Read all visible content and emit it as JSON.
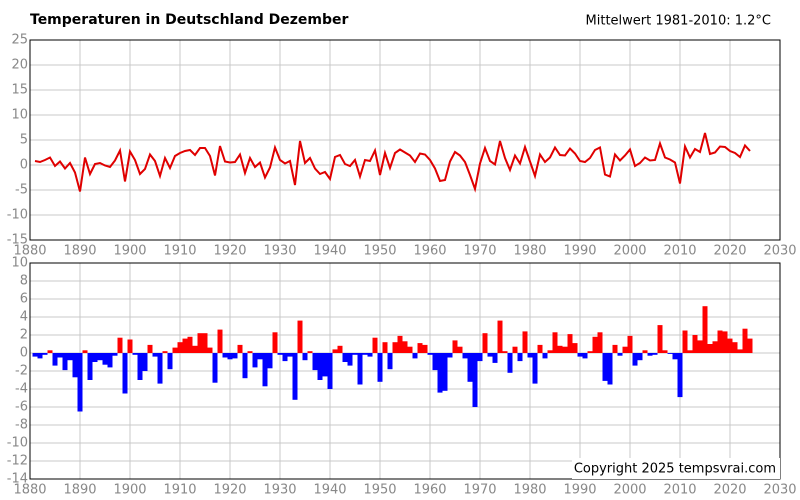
{
  "chart_data": [
    {
      "type": "line",
      "title": "Temperaturen in Deutschland Dezember",
      "subtitle": "Mittelwert 1981-2010: 1.2°C",
      "color": "#e00000",
      "grid": true,
      "x": [
        1881,
        1882,
        1883,
        1884,
        1885,
        1886,
        1887,
        1888,
        1889,
        1890,
        1891,
        1892,
        1893,
        1894,
        1895,
        1896,
        1897,
        1898,
        1899,
        1900,
        1901,
        1902,
        1903,
        1904,
        1905,
        1906,
        1907,
        1908,
        1909,
        1910,
        1911,
        1912,
        1913,
        1914,
        1915,
        1916,
        1917,
        1918,
        1919,
        1920,
        1921,
        1922,
        1923,
        1924,
        1925,
        1926,
        1927,
        1928,
        1929,
        1930,
        1931,
        1932,
        1933,
        1934,
        1935,
        1936,
        1937,
        1938,
        1939,
        1940,
        1941,
        1942,
        1943,
        1944,
        1945,
        1946,
        1947,
        1948,
        1949,
        1950,
        1951,
        1952,
        1953,
        1954,
        1955,
        1956,
        1957,
        1958,
        1959,
        1960,
        1961,
        1962,
        1963,
        1964,
        1965,
        1966,
        1967,
        1968,
        1969,
        1970,
        1971,
        1972,
        1973,
        1974,
        1975,
        1976,
        1977,
        1978,
        1979,
        1980,
        1981,
        1982,
        1983,
        1984,
        1985,
        1986,
        1987,
        1988,
        1989,
        1990,
        1991,
        1992,
        1993,
        1994,
        1995,
        1996,
        1997,
        1998,
        1999,
        2000,
        2001,
        2002,
        2003,
        2004,
        2005,
        2006,
        2007,
        2008,
        2009,
        2010,
        2011,
        2012,
        2013,
        2014,
        2015,
        2016,
        2017,
        2018,
        2019,
        2020,
        2021,
        2022,
        2023,
        2024
      ],
      "values": [
        0.8,
        0.6,
        1.0,
        1.5,
        -0.2,
        0.7,
        -0.7,
        0.4,
        -1.5,
        -5.3,
        1.5,
        -1.8,
        0.2,
        0.4,
        -0.1,
        -0.4,
        0.9,
        2.9,
        -3.3,
        2.7,
        1.0,
        -1.8,
        -0.8,
        2.1,
        0.8,
        -2.2,
        1.4,
        -0.6,
        1.8,
        2.4,
        2.8,
        3.0,
        2.0,
        3.4,
        3.4,
        1.8,
        -2.1,
        3.8,
        0.7,
        0.5,
        0.6,
        2.1,
        -1.6,
        1.4,
        -0.4,
        0.5,
        -2.5,
        -0.5,
        3.5,
        1.0,
        0.3,
        0.8,
        -4.0,
        4.8,
        0.4,
        1.4,
        -0.7,
        -1.8,
        -1.4,
        -2.8,
        1.6,
        2.0,
        0.2,
        -0.2,
        1.0,
        -2.3,
        1.0,
        0.8,
        2.9,
        -2.0,
        2.4,
        -0.6,
        2.4,
        3.1,
        2.5,
        1.9,
        0.6,
        2.3,
        2.1,
        1.0,
        -0.7,
        -3.2,
        -3.0,
        0.7,
        2.6,
        1.9,
        0.6,
        -2.0,
        -4.8,
        0.3,
        3.4,
        0.8,
        0.1,
        4.8,
        1.4,
        -1.0,
        1.9,
        0.3,
        3.6,
        0.7,
        -2.2,
        2.1,
        0.6,
        1.5,
        3.5,
        2.0,
        1.9,
        3.3,
        2.3,
        0.8,
        0.6,
        1.4,
        3.0,
        3.5,
        -1.9,
        -2.3,
        2.1,
        0.9,
        1.9,
        3.1,
        -0.2,
        0.4,
        1.5,
        0.9,
        1.0,
        4.3,
        1.5,
        1.1,
        0.5,
        -3.7,
        3.7,
        1.5,
        3.2,
        2.6,
        6.4,
        2.2,
        2.5,
        3.7,
        3.6,
        2.8,
        2.4,
        1.6,
        3.9,
        2.8
      ],
      "xlim": [
        1880,
        2030
      ],
      "xticks": [
        1880,
        1890,
        1900,
        1910,
        1920,
        1930,
        1940,
        1950,
        1960,
        1970,
        1980,
        1990,
        2000,
        2010,
        2020,
        2030
      ],
      "ylim": [
        -15,
        25
      ],
      "yticks": [
        -15,
        -10,
        -5,
        0,
        5,
        10,
        15,
        20,
        25
      ]
    },
    {
      "type": "bar",
      "annotation": "Copyright 2025 tempsvrai.com",
      "color_positive": "#ff0000",
      "color_negative": "#0000ff",
      "grid": true,
      "x": [
        1881,
        1882,
        1883,
        1884,
        1885,
        1886,
        1887,
        1888,
        1889,
        1890,
        1891,
        1892,
        1893,
        1894,
        1895,
        1896,
        1897,
        1898,
        1899,
        1900,
        1901,
        1902,
        1903,
        1904,
        1905,
        1906,
        1907,
        1908,
        1909,
        1910,
        1911,
        1912,
        1913,
        1914,
        1915,
        1916,
        1917,
        1918,
        1919,
        1920,
        1921,
        1922,
        1923,
        1924,
        1925,
        1926,
        1927,
        1928,
        1929,
        1930,
        1931,
        1932,
        1933,
        1934,
        1935,
        1936,
        1937,
        1938,
        1939,
        1940,
        1941,
        1942,
        1943,
        1944,
        1945,
        1946,
        1947,
        1948,
        1949,
        1950,
        1951,
        1952,
        1953,
        1954,
        1955,
        1956,
        1957,
        1958,
        1959,
        1960,
        1961,
        1962,
        1963,
        1964,
        1965,
        1966,
        1967,
        1968,
        1969,
        1970,
        1971,
        1972,
        1973,
        1974,
        1975,
        1976,
        1977,
        1978,
        1979,
        1980,
        1981,
        1982,
        1983,
        1984,
        1985,
        1986,
        1987,
        1988,
        1989,
        1990,
        1991,
        1992,
        1993,
        1994,
        1995,
        1996,
        1997,
        1998,
        1999,
        2000,
        2001,
        2002,
        2003,
        2004,
        2005,
        2006,
        2007,
        2008,
        2009,
        2010,
        2011,
        2012,
        2013,
        2014,
        2015,
        2016,
        2017,
        2018,
        2019,
        2020,
        2021,
        2022,
        2023,
        2024
      ],
      "values": [
        -0.4,
        -0.6,
        -0.2,
        0.3,
        -1.4,
        -0.5,
        -1.9,
        -0.8,
        -2.7,
        -6.5,
        0.3,
        -3.0,
        -1.0,
        -0.8,
        -1.3,
        -1.6,
        -0.3,
        1.7,
        -4.5,
        1.5,
        -0.2,
        -3.0,
        -2.0,
        0.9,
        -0.4,
        -3.4,
        0.2,
        -1.8,
        0.6,
        1.2,
        1.6,
        1.8,
        0.8,
        2.2,
        2.2,
        0.6,
        -3.3,
        2.6,
        -0.5,
        -0.7,
        -0.6,
        0.9,
        -2.8,
        0.2,
        -1.6,
        -0.7,
        -3.7,
        -1.7,
        2.3,
        -0.2,
        -0.9,
        -0.4,
        -5.2,
        3.6,
        -0.8,
        0.2,
        -1.9,
        -3.0,
        -2.6,
        -4.0,
        0.4,
        0.8,
        -1.0,
        -1.4,
        -0.2,
        -3.5,
        -0.2,
        -0.4,
        1.7,
        -3.2,
        1.2,
        -1.8,
        1.2,
        1.9,
        1.3,
        0.7,
        -0.6,
        1.1,
        0.9,
        -0.2,
        -1.9,
        -4.4,
        -4.2,
        -0.5,
        1.4,
        0.7,
        -0.6,
        -3.2,
        -6.0,
        -0.9,
        2.2,
        -0.4,
        -1.1,
        3.6,
        0.2,
        -2.2,
        0.7,
        -0.9,
        2.4,
        -0.5,
        -3.4,
        0.9,
        -0.6,
        0.3,
        2.3,
        0.8,
        0.7,
        2.1,
        1.1,
        -0.4,
        -0.6,
        0.2,
        1.8,
        2.3,
        -3.1,
        -3.5,
        0.9,
        -0.3,
        0.7,
        1.9,
        -1.4,
        -0.8,
        0.3,
        -0.3,
        -0.2,
        3.1,
        0.3,
        -0.1,
        -0.7,
        -4.9,
        2.5,
        0.3,
        2.0,
        1.4,
        5.2,
        1.0,
        1.3,
        2.5,
        2.4,
        1.6,
        1.2,
        0.4,
        2.7,
        1.6
      ],
      "xlim": [
        1880,
        2030
      ],
      "xticks": [
        1880,
        1890,
        1900,
        1910,
        1920,
        1930,
        1940,
        1950,
        1960,
        1970,
        1980,
        1990,
        2000,
        2010,
        2020,
        2030
      ],
      "ylim": [
        -14,
        10
      ],
      "yticks": [
        -14,
        -12,
        -10,
        -8,
        -6,
        -4,
        -2,
        0,
        2,
        4,
        6,
        8,
        10
      ]
    }
  ]
}
